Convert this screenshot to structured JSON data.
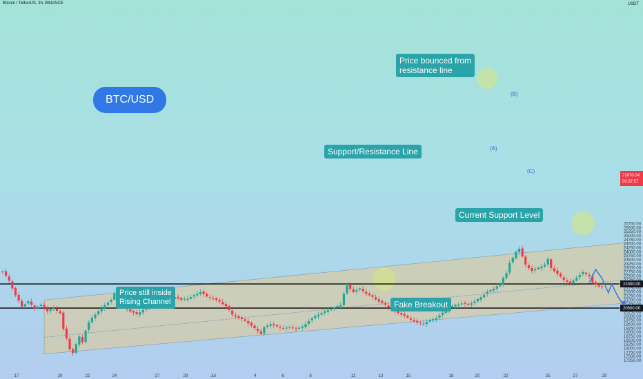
{
  "header": {
    "symbol_line": "Bitcoin / TetherUS, 3h, BINANCE",
    "currency": "USDT"
  },
  "chart_data": {
    "type": "candlestick",
    "title": "Bitcoin / TetherUS, 3h, BINANCE",
    "y_unit": "USDT",
    "ylim": [
      17100,
      25950
    ],
    "price_ticks": [
      17250,
      17500,
      17750,
      18000,
      18250,
      18500,
      18750,
      19000,
      19250,
      19500,
      19750,
      20000,
      20250,
      20500,
      20750,
      21000,
      21250,
      21500,
      21750,
      22000,
      22250,
      22500,
      22750,
      23000,
      23250,
      23500,
      23750,
      24000,
      24250,
      24500,
      24750,
      25000,
      25250,
      25500,
      25750
    ],
    "price_tick_labels": [
      "17250.00",
      "17500.00",
      "17750.00",
      "18000.00",
      "18250.00",
      "18500.00",
      "18750.00",
      "19000.00",
      "19250.00",
      "19500.00",
      "19750.00",
      "20000.00",
      "20250.00",
      "20500.00",
      "20750.00",
      "21000.00",
      "21250.00",
      "21500.00",
      "21750.00",
      "22000.00",
      "22250.00",
      "22500.00",
      "22750.00",
      "23000.00",
      "23250.00",
      "23500.00",
      "23750.00",
      "24000.00",
      "24250.00",
      "24500.00",
      "24750.00",
      "25000.00",
      "25250.00",
      "25500.00",
      "25750.00"
    ],
    "x_ticks": [
      "17",
      "20",
      "22",
      "24",
      "27",
      "29",
      "Jul",
      "4",
      "6",
      "8",
      "11",
      "13",
      "15",
      "18",
      "20",
      "22",
      "25",
      "27",
      "29"
    ],
    "price_series": [
      [
        0,
        22750
      ],
      [
        2,
        22200
      ],
      [
        4,
        21300
      ],
      [
        6,
        20600
      ],
      [
        8,
        20900
      ],
      [
        10,
        20500
      ],
      [
        12,
        20700
      ],
      [
        14,
        20300
      ],
      [
        16,
        20500
      ],
      [
        18,
        20200
      ],
      [
        19,
        19200
      ],
      [
        20,
        18600
      ],
      [
        21,
        17950
      ],
      [
        22,
        17700
      ],
      [
        23,
        18250
      ],
      [
        24,
        18750
      ],
      [
        25,
        18400
      ],
      [
        26,
        19100
      ],
      [
        27,
        19600
      ],
      [
        28,
        19900
      ],
      [
        30,
        20300
      ],
      [
        32,
        20700
      ],
      [
        34,
        21000
      ],
      [
        35,
        21400
      ],
      [
        36,
        21650
      ],
      [
        37,
        21100
      ],
      [
        38,
        20600
      ],
      [
        40,
        20300
      ],
      [
        42,
        20100
      ],
      [
        44,
        20400
      ],
      [
        46,
        20700
      ],
      [
        48,
        20900
      ],
      [
        50,
        20800
      ],
      [
        52,
        21000
      ],
      [
        54,
        21200
      ],
      [
        56,
        21000
      ],
      [
        58,
        21100
      ],
      [
        60,
        21300
      ],
      [
        62,
        21500
      ],
      [
        64,
        21200
      ],
      [
        66,
        21100
      ],
      [
        68,
        20900
      ],
      [
        70,
        20600
      ],
      [
        72,
        20100
      ],
      [
        74,
        19900
      ],
      [
        76,
        19700
      ],
      [
        78,
        19400
      ],
      [
        80,
        19100
      ],
      [
        81,
        18900
      ],
      [
        82,
        19300
      ],
      [
        84,
        19500
      ],
      [
        86,
        19350
      ],
      [
        88,
        19250
      ],
      [
        90,
        19300
      ],
      [
        92,
        19200
      ],
      [
        94,
        19350
      ],
      [
        96,
        19700
      ],
      [
        98,
        20000
      ],
      [
        100,
        20200
      ],
      [
        102,
        20400
      ],
      [
        104,
        20500
      ],
      [
        106,
        20700
      ],
      [
        107,
        21400
      ],
      [
        108,
        22000
      ],
      [
        109,
        21700
      ],
      [
        110,
        21500
      ],
      [
        112,
        21700
      ],
      [
        114,
        21400
      ],
      [
        116,
        21200
      ],
      [
        118,
        20900
      ],
      [
        120,
        20700
      ],
      [
        122,
        20400
      ],
      [
        124,
        20200
      ],
      [
        126,
        20000
      ],
      [
        128,
        19800
      ],
      [
        130,
        19600
      ],
      [
        132,
        19500
      ],
      [
        134,
        19750
      ],
      [
        136,
        19900
      ],
      [
        138,
        20200
      ],
      [
        140,
        20500
      ],
      [
        142,
        20700
      ],
      [
        144,
        20800
      ],
      [
        146,
        20700
      ],
      [
        148,
        20900
      ],
      [
        150,
        21200
      ],
      [
        152,
        21500
      ],
      [
        154,
        21700
      ],
      [
        156,
        22000
      ],
      [
        157,
        22400
      ],
      [
        158,
        22700
      ],
      [
        159,
        23300
      ],
      [
        160,
        23600
      ],
      [
        161,
        24000
      ],
      [
        162,
        24200
      ],
      [
        163,
        23700
      ],
      [
        164,
        23200
      ],
      [
        166,
        22800
      ],
      [
        168,
        23000
      ],
      [
        170,
        23200
      ],
      [
        171,
        23550
      ],
      [
        172,
        23000
      ],
      [
        174,
        22600
      ],
      [
        176,
        22250
      ],
      [
        178,
        22050
      ],
      [
        180,
        22400
      ],
      [
        182,
        22700
      ],
      [
        184,
        22500
      ],
      [
        185,
        22100
      ],
      [
        186,
        21950
      ],
      [
        187,
        21850
      ],
      [
        188,
        21800
      ]
    ],
    "projection_series": [
      [
        184,
        22100
      ],
      [
        186,
        22900
      ],
      [
        188,
        22350
      ],
      [
        190,
        21450
      ],
      [
        191,
        22000
      ],
      [
        193,
        21200
      ],
      [
        195,
        20650
      ]
    ],
    "horizontal_levels": [
      {
        "price": 22000,
        "label": "22000.00"
      },
      {
        "price": 20500,
        "label": "20500.00"
      }
    ],
    "last_price": {
      "label": "21870.04",
      "countdown": "00:37:57"
    },
    "channel": {
      "lower": [
        [
          13,
          17650
        ],
        [
          195,
          20800
        ]
      ],
      "upper": [
        [
          13,
          21000
        ],
        [
          195,
          24550
        ]
      ]
    },
    "annotations": [
      "BTC/USD",
      "Price bounced from resistance line",
      "Support/Resistance Line",
      "Current Support Level",
      "Price still inside Rising Channel",
      "Fake Breakout"
    ],
    "wave_labels": [
      "(A)",
      "(B)",
      "(C)"
    ]
  },
  "callouts": {
    "btc": "BTC/USD",
    "bounce": "Price bounced from\nresistance line",
    "sr_line": "Support/Resistance Line",
    "support": "Current Support Level",
    "channel": "Price still inside\nRising Channel",
    "fake": "Fake Breakout"
  },
  "colors": {
    "up": "#1ea697",
    "down": "#ef3b47",
    "channel_fill": "#e3c98f",
    "projection": "#3a7be0",
    "callout": "#2aa3a9",
    "btc_callout": "#2f78e6"
  }
}
